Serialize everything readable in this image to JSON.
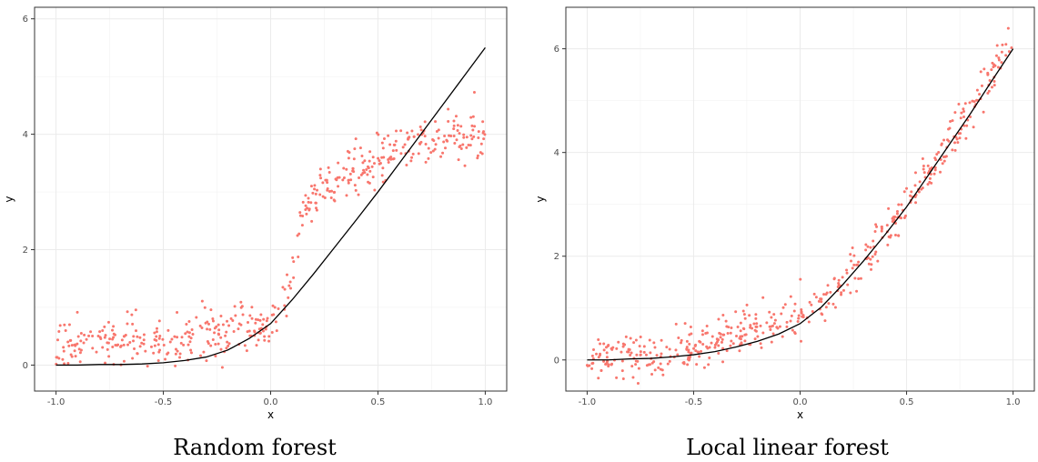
{
  "chart_data": [
    {
      "type": "scatter",
      "caption": "Random forest",
      "xlabel": "x",
      "ylabel": "y",
      "xlim": [
        -1.1,
        1.1
      ],
      "ylim": [
        -0.45,
        6.2
      ],
      "xticks": [
        -1.0,
        -0.5,
        0.0,
        0.5,
        1.0
      ],
      "xtick_labels": [
        "-1.0",
        "-0.5",
        "0.0",
        "0.5",
        "1.0"
      ],
      "yticks": [
        0,
        2,
        4,
        6
      ],
      "ytick_labels": [
        "0",
        "2",
        "4",
        "6"
      ],
      "grid": true,
      "point_color": "#F8766D",
      "line_color": "#000000",
      "true_curve": {
        "x": [
          -1.0,
          -0.9,
          -0.8,
          -0.7,
          -0.6,
          -0.5,
          -0.4,
          -0.3,
          -0.2,
          -0.1,
          0.0,
          0.1,
          0.2,
          0.3,
          0.4,
          0.5,
          0.6,
          0.7,
          0.8,
          0.9,
          1.0
        ],
        "y": [
          0.0,
          0.0,
          0.01,
          0.01,
          0.02,
          0.04,
          0.08,
          0.14,
          0.26,
          0.46,
          0.72,
          1.13,
          1.58,
          2.05,
          2.52,
          3.0,
          3.5,
          4.0,
          4.5,
          5.0,
          5.5
        ]
      },
      "prediction_trend": {
        "x": [
          -1.0,
          -0.9,
          -0.8,
          -0.7,
          -0.6,
          -0.5,
          -0.4,
          -0.3,
          -0.2,
          -0.1,
          0.0,
          0.05,
          0.1,
          0.12,
          0.15,
          0.2,
          0.3,
          0.4,
          0.5,
          0.6,
          0.7,
          0.8,
          0.9,
          1.0
        ],
        "y": [
          0.3,
          0.35,
          0.4,
          0.42,
          0.42,
          0.42,
          0.45,
          0.5,
          0.58,
          0.68,
          0.72,
          0.9,
          1.4,
          2.0,
          2.6,
          2.95,
          3.15,
          3.35,
          3.6,
          3.8,
          3.85,
          3.9,
          3.95,
          4.0
        ]
      },
      "noise_sd": 0.2,
      "n_points": 500
    },
    {
      "type": "scatter",
      "caption": "Local linear forest",
      "xlabel": "x",
      "ylabel": "y",
      "xlim": [
        -1.1,
        1.1
      ],
      "ylim": [
        -0.6,
        6.8
      ],
      "xticks": [
        -1.0,
        -0.5,
        0.0,
        0.5,
        1.0
      ],
      "xtick_labels": [
        "-1.0",
        "-0.5",
        "0.0",
        "0.5",
        "1.0"
      ],
      "yticks": [
        0,
        2,
        4,
        6
      ],
      "ytick_labels": [
        "0",
        "2",
        "4",
        "6"
      ],
      "grid": true,
      "point_color": "#F8766D",
      "line_color": "#000000",
      "true_curve": {
        "x": [
          -1.0,
          -0.9,
          -0.8,
          -0.7,
          -0.6,
          -0.5,
          -0.4,
          -0.3,
          -0.2,
          -0.1,
          0.0,
          0.1,
          0.2,
          0.3,
          0.4,
          0.5,
          0.6,
          0.7,
          0.8,
          0.9,
          1.0
        ],
        "y": [
          0.0,
          0.0,
          0.02,
          0.03,
          0.06,
          0.1,
          0.16,
          0.25,
          0.36,
          0.5,
          0.7,
          1.02,
          1.45,
          1.92,
          2.42,
          2.95,
          3.55,
          4.15,
          4.75,
          5.38,
          6.0
        ]
      },
      "prediction_trend": {
        "x": [
          -1.0,
          -0.9,
          -0.8,
          -0.7,
          -0.6,
          -0.5,
          -0.4,
          -0.3,
          -0.2,
          -0.1,
          0.0,
          0.1,
          0.2,
          0.3,
          0.4,
          0.5,
          0.6,
          0.7,
          0.8,
          0.9,
          1.0
        ],
        "y": [
          0.0,
          0.05,
          0.08,
          0.12,
          0.18,
          0.28,
          0.38,
          0.5,
          0.6,
          0.7,
          0.85,
          1.1,
          1.5,
          1.95,
          2.45,
          3.0,
          3.6,
          4.2,
          4.85,
          5.5,
          6.2
        ]
      },
      "noise_sd": 0.22,
      "n_points": 500
    }
  ]
}
